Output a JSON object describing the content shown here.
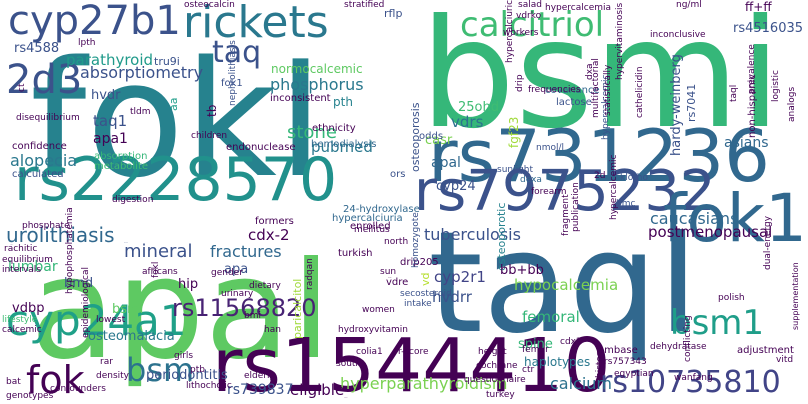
{
  "words": [
    {
      "text": "bsmi",
      "color": "#35b779"
    },
    {
      "text": "fokI",
      "color": "#26828e"
    },
    {
      "text": "apaI",
      "color": "#5ec962"
    },
    {
      "text": "taqI",
      "color": "#31688e"
    },
    {
      "text": "rs1544410",
      "color": "#440154"
    },
    {
      "text": "rs731236",
      "color": "#31688e"
    },
    {
      "text": "rs2228570",
      "color": "#21918c"
    },
    {
      "text": "rs7975232",
      "color": "#3b528b"
    },
    {
      "text": "rickets",
      "color": "#2a788e"
    },
    {
      "text": "cyp27b1",
      "color": "#3b528b"
    },
    {
      "text": "calcitriol",
      "color": "#3fbc73"
    },
    {
      "text": "2d3",
      "color": "#3b528b"
    },
    {
      "text": "fok1",
      "color": "#31688e"
    },
    {
      "text": "cyp24a1",
      "color": "#1fa088"
    },
    {
      "text": "bsm1",
      "color": "#1f9e89"
    },
    {
      "text": "fok",
      "color": "#440154"
    },
    {
      "text": "bsm",
      "color": "#2c728e"
    },
    {
      "text": "rs10735810",
      "color": "#414487"
    },
    {
      "text": "rs11568820",
      "color": "#482374"
    },
    {
      "text": "taq",
      "color": "#3b528b"
    },
    {
      "text": "parathyroid",
      "color": "#1f9a8a"
    },
    {
      "text": "phosphorus",
      "color": "#2a788e"
    },
    {
      "text": "normocalcemic",
      "color": "#5ec962"
    },
    {
      "text": "absorptiometry",
      "color": "#3b528b"
    },
    {
      "text": "alopecia",
      "color": "#2a788e"
    },
    {
      "text": "urolithiasis",
      "color": "#31688e"
    },
    {
      "text": "mineral",
      "color": "#3b528b"
    },
    {
      "text": "fractures",
      "color": "#31688e"
    },
    {
      "text": "tuberculosis",
      "color": "#3b528b"
    },
    {
      "text": "postmenopausal",
      "color": "#440154"
    },
    {
      "text": "caucasians",
      "color": "#31688e"
    },
    {
      "text": "hypocalcemia",
      "color": "#7ad151"
    },
    {
      "text": "hyperparathyroidism",
      "color": "#7ad151"
    },
    {
      "text": "osteoporotic",
      "color": "#26828e"
    },
    {
      "text": "osteoporosis",
      "color": "#3b528b"
    },
    {
      "text": "osteomalacia",
      "color": "#2a788e"
    },
    {
      "text": "periodontitis",
      "color": "#3b528b"
    },
    {
      "text": "paricalcitol",
      "color": "#a0da39"
    },
    {
      "text": "rs739837",
      "color": "#3b528b"
    },
    {
      "text": "eligible",
      "color": "#440154"
    },
    {
      "text": "calcium",
      "color": "#2c728e"
    },
    {
      "text": "vdrs",
      "color": "#2c728e"
    },
    {
      "text": "apal",
      "color": "#31688e"
    },
    {
      "text": "stone",
      "color": "#35b779"
    },
    {
      "text": "pubmed",
      "color": "#2a788e"
    },
    {
      "text": "taq1",
      "color": "#3b528b"
    },
    {
      "text": "apa1",
      "color": "#440154"
    },
    {
      "text": "hvdr",
      "color": "#3b528b"
    },
    {
      "text": "hvdrr",
      "color": "#3b528b"
    },
    {
      "text": "cyp2r1",
      "color": "#414487"
    },
    {
      "text": "cdx-2",
      "color": "#440154"
    },
    {
      "text": "femoral",
      "color": "#35b779"
    },
    {
      "text": "spine",
      "color": "#35b779"
    },
    {
      "text": "haplotypes",
      "color": "#2a788e"
    },
    {
      "text": "hardy-weinberg",
      "color": "#3b528b"
    },
    {
      "text": "asians",
      "color": "#31688e"
    },
    {
      "text": "rs4588",
      "color": "#3b528b"
    },
    {
      "text": "rs4516035",
      "color": "#3b528b"
    },
    {
      "text": "ff+ff",
      "color": "#440154"
    },
    {
      "text": "lumbar",
      "color": "#35b779"
    },
    {
      "text": "bmd",
      "color": "#3b528b"
    },
    {
      "text": "hip",
      "color": "#440154"
    },
    {
      "text": "vdbp",
      "color": "#440154"
    },
    {
      "text": "bsml",
      "color": "#5ec962"
    },
    {
      "text": "apa",
      "color": "#3b528b"
    },
    {
      "text": "tb",
      "color": "#440154"
    },
    {
      "text": "aa",
      "color": "#1f9e89"
    },
    {
      "text": "25ohd",
      "color": "#3fbc73"
    },
    {
      "text": "casr",
      "color": "#7ad151"
    },
    {
      "text": "cyp24",
      "color": "#3b528b"
    },
    {
      "text": "pth",
      "color": "#26828e"
    },
    {
      "text": "rflp",
      "color": "#3b528b"
    },
    {
      "text": "fgf23",
      "color": "#a0da39"
    },
    {
      "text": "vd",
      "color": "#b5de2b"
    },
    {
      "text": "bb+bb",
      "color": "#440154"
    },
    {
      "text": "rs7041",
      "color": "#3b528b"
    },
    {
      "text": "inconsistent",
      "color": "#440154"
    },
    {
      "text": "ethnicity",
      "color": "#440154"
    },
    {
      "text": "hemodialysis",
      "color": "#31688e"
    },
    {
      "text": "24-hydroxylase",
      "color": "#31688e"
    },
    {
      "text": "hypercalciuria",
      "color": "#31688e"
    },
    {
      "text": "dexa",
      "color": "#31688e"
    },
    {
      "text": "tru9i",
      "color": "#3b528b"
    },
    {
      "text": "fok1",
      "color": "#3b528b"
    },
    {
      "text": "covariance",
      "color": "#31688e"
    },
    {
      "text": "lactose",
      "color": "#3b528b"
    },
    {
      "text": "confidence",
      "color": "#440154"
    },
    {
      "text": "absorption",
      "color": "#35b779"
    },
    {
      "text": "metabolite",
      "color": "#3fbc73"
    },
    {
      "text": "calculated",
      "color": "#3b528b"
    },
    {
      "text": "endonuclease",
      "color": "#440154"
    },
    {
      "text": "hypercalcemic",
      "color": "#3b528b"
    },
    {
      "text": "nephrolithiasis",
      "color": "#3b528b"
    },
    {
      "text": "children",
      "color": "#440154"
    },
    {
      "text": "enrolled",
      "color": "#440154"
    },
    {
      "text": "formers",
      "color": "#440154"
    },
    {
      "text": "ors",
      "color": "#3b528b"
    },
    {
      "text": "odds",
      "color": "#3b528b"
    },
    {
      "text": "sunlight",
      "color": "#3b528b"
    },
    {
      "text": "nmol/l",
      "color": "#3b528b"
    },
    {
      "text": "forearm",
      "color": "#440154"
    },
    {
      "text": "2d",
      "color": "#440154"
    },
    {
      "text": "klotho",
      "color": "#3b528b"
    },
    {
      "text": "bmc",
      "color": "#3b528b"
    },
    {
      "text": "drip205",
      "color": "#440154"
    },
    {
      "text": "homozygote",
      "color": "#3b528b"
    },
    {
      "text": "secosteroid",
      "color": "#3b528b"
    },
    {
      "text": "intake",
      "color": "#3b528b"
    },
    {
      "text": "vdre",
      "color": "#440154"
    },
    {
      "text": "turkish",
      "color": "#440154"
    },
    {
      "text": "mineral",
      "color": "#3b528b"
    },
    {
      "text": "rachitic",
      "color": "#440154"
    },
    {
      "text": "x-ray",
      "color": "#440154"
    },
    {
      "text": "equilibrium",
      "color": "#440154"
    },
    {
      "text": "intervals",
      "color": "#440154"
    },
    {
      "text": "lifestyle",
      "color": "#3fbc73"
    },
    {
      "text": "calcemic",
      "color": "#440154"
    },
    {
      "text": "hypophosphatemia",
      "color": "#440154"
    },
    {
      "text": "epidemiological",
      "color": "#440154"
    },
    {
      "text": "africans",
      "color": "#440154"
    },
    {
      "text": "lowest",
      "color": "#440154"
    },
    {
      "text": "bmi",
      "color": "#440154"
    },
    {
      "text": "han",
      "color": "#440154"
    },
    {
      "text": "urinary",
      "color": "#440154"
    },
    {
      "text": "dietary",
      "color": "#440154"
    },
    {
      "text": "gender",
      "color": "#440154"
    },
    {
      "text": "rs757343",
      "color": "#440154"
    },
    {
      "text": "egyptian",
      "color": "#440154"
    },
    {
      "text": "embase",
      "color": "#440154"
    },
    {
      "text": "dehydratase",
      "color": "#440154"
    },
    {
      "text": "adjustment",
      "color": "#440154"
    },
    {
      "text": "supplementation",
      "color": "#440154"
    },
    {
      "text": "vitd",
      "color": "#440154"
    },
    {
      "text": "conflicting",
      "color": "#440154"
    },
    {
      "text": "wanfang",
      "color": "#440154"
    },
    {
      "text": "femur",
      "color": "#440154"
    },
    {
      "text": "cdx2",
      "color": "#440154"
    },
    {
      "text": "height",
      "color": "#440154"
    },
    {
      "text": "cochrane",
      "color": "#440154"
    },
    {
      "text": "ctr",
      "color": "#440154"
    },
    {
      "text": "turkey",
      "color": "#440154"
    },
    {
      "text": "colia1",
      "color": "#440154"
    },
    {
      "text": "south",
      "color": "#440154"
    },
    {
      "text": "elderly",
      "color": "#440154"
    },
    {
      "text": "iranian",
      "color": "#440154"
    },
    {
      "text": "ptb",
      "color": "#440154"
    },
    {
      "text": "girls",
      "color": "#440154"
    },
    {
      "text": "density",
      "color": "#440154"
    },
    {
      "text": "confounders",
      "color": "#440154"
    },
    {
      "text": "genotypes",
      "color": "#440154"
    },
    {
      "text": "rar",
      "color": "#440154"
    },
    {
      "text": "bat",
      "color": "#440154"
    },
    {
      "text": "polish",
      "color": "#440154"
    },
    {
      "text": "dual-energy",
      "color": "#440154"
    },
    {
      "text": "prevalence",
      "color": "#440154"
    },
    {
      "text": "logistic",
      "color": "#440154"
    },
    {
      "text": "non-hispanic",
      "color": "#440154"
    },
    {
      "text": "analogs",
      "color": "#440154"
    },
    {
      "text": "ng/ml",
      "color": "#440154"
    },
    {
      "text": "inconclusive",
      "color": "#440154"
    },
    {
      "text": "statistically",
      "color": "#440154"
    },
    {
      "text": "hypercalcemia",
      "color": "#440154"
    },
    {
      "text": "drip",
      "color": "#440154"
    },
    {
      "text": "frequencies",
      "color": "#440154"
    },
    {
      "text": "dxa",
      "color": "#440154"
    },
    {
      "text": "vdrko",
      "color": "#440154"
    },
    {
      "text": "workers",
      "color": "#440154"
    },
    {
      "text": "stratified",
      "color": "#440154"
    },
    {
      "text": "osteocalcin",
      "color": "#440154"
    },
    {
      "text": "lpth",
      "color": "#440154"
    },
    {
      "text": "disequilibrium",
      "color": "#440154"
    },
    {
      "text": "ct",
      "color": "#440154"
    },
    {
      "text": "tldm",
      "color": "#440154"
    },
    {
      "text": "digestion",
      "color": "#440154"
    },
    {
      "text": "phosphate",
      "color": "#440154"
    },
    {
      "text": "mellitus",
      "color": "#440154"
    },
    {
      "text": "north",
      "color": "#440154"
    },
    {
      "text": "sun",
      "color": "#440154"
    },
    {
      "text": "bbaatt",
      "color": "#440154"
    },
    {
      "text": "women",
      "color": "#440154"
    },
    {
      "text": "hydroxyvitamin",
      "color": "#440154"
    },
    {
      "text": "radqan",
      "color": "#440154"
    },
    {
      "text": "lithocholic",
      "color": "#440154"
    },
    {
      "text": "r-score",
      "color": "#440154"
    },
    {
      "text": "questionnaire",
      "color": "#440154"
    },
    {
      "text": "fragment",
      "color": "#440154"
    },
    {
      "text": "publication",
      "color": "#440154"
    },
    {
      "text": "hypercalcemic",
      "color": "#440154"
    },
    {
      "text": "hypervitaminosis",
      "color": "#440154"
    },
    {
      "text": "history",
      "color": "#440154"
    },
    {
      "text": "multifactorial",
      "color": "#440154"
    },
    {
      "text": "cathelicidin",
      "color": "#440154"
    },
    {
      "text": "taql",
      "color": "#440154"
    },
    {
      "text": "hypercalciuric",
      "color": "#440154"
    },
    {
      "text": "salad",
      "color": "#440154"
    },
    {
      "text": "fokl",
      "color": "#440154"
    }
  ]
}
